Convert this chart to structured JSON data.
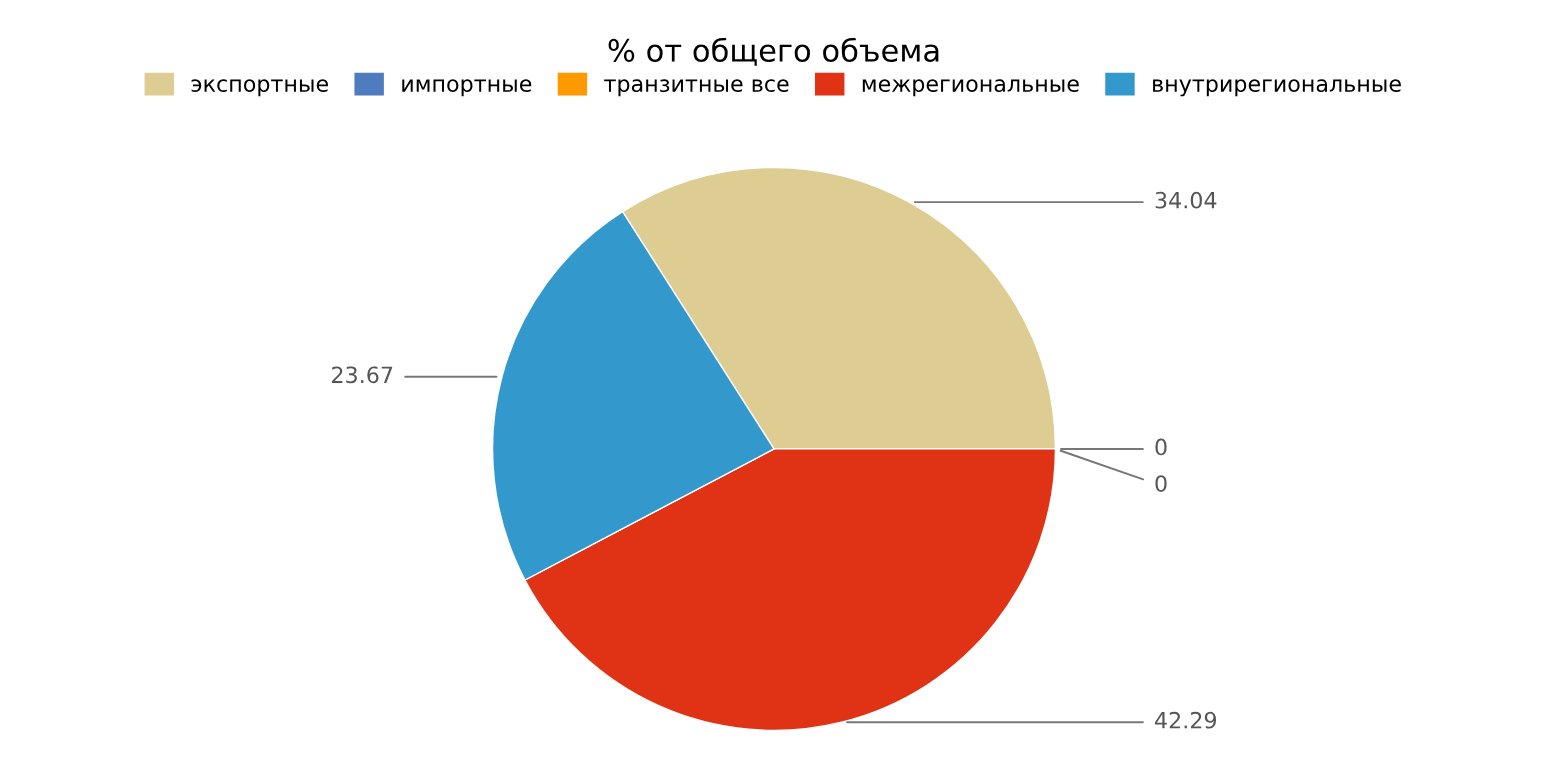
{
  "chart_data": {
    "type": "pie",
    "title": "% от общего объема",
    "categories": [
      "экспортные",
      "импортные",
      "транзитные все",
      "межрегиональные",
      "внутрирегиональные"
    ],
    "values": [
      34.04,
      0,
      0,
      42.29,
      23.67
    ],
    "value_labels": [
      "34.04",
      "0",
      "0",
      "42.29",
      "23.67"
    ],
    "colors": [
      "#ddcd93",
      "#4f7bbf",
      "#ff9900",
      "#e03316",
      "#3399cc"
    ],
    "legend": "top"
  }
}
